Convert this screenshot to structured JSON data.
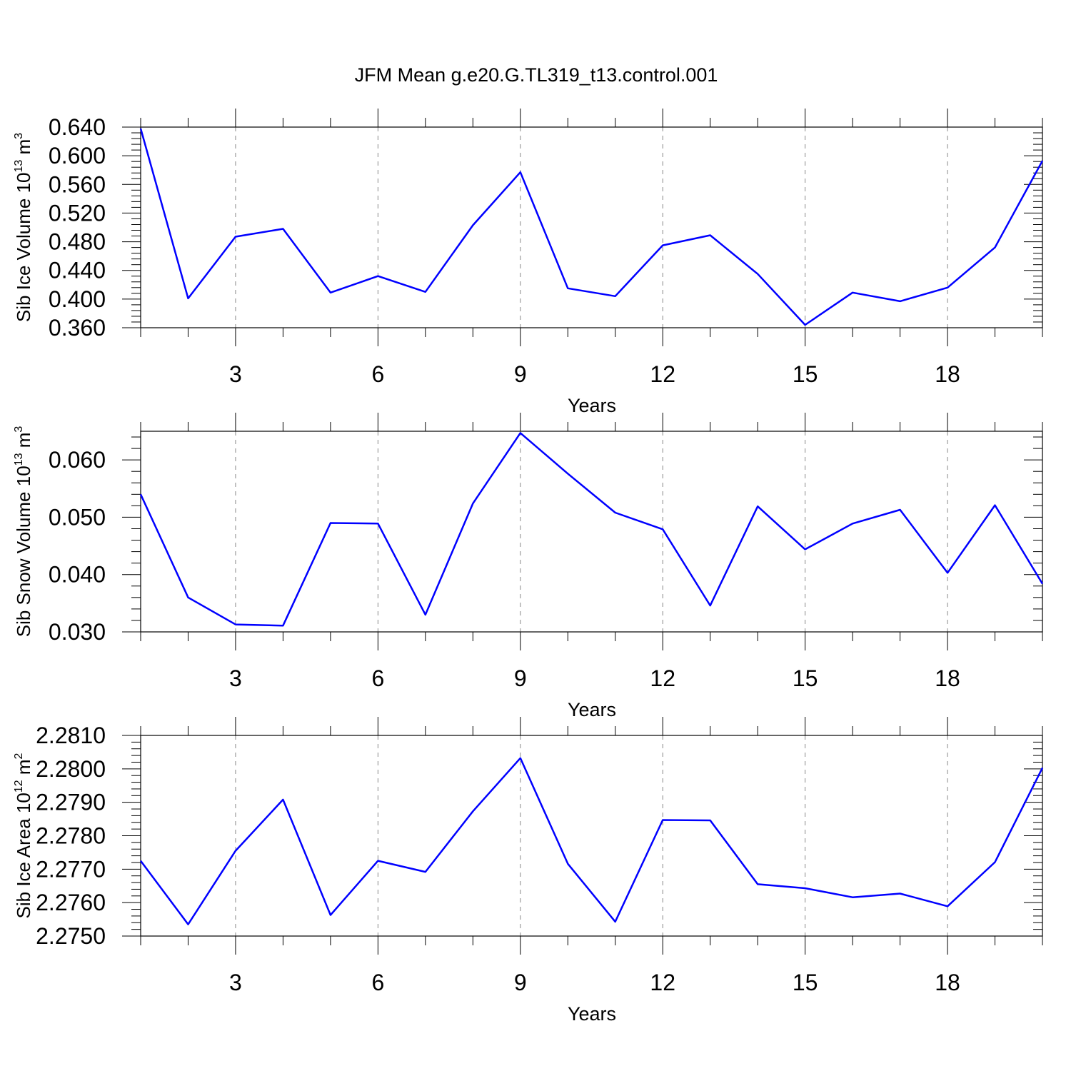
{
  "title": "JFM Mean g.e20.G.TL319_t13.control.001",
  "chart_data": [
    {
      "type": "line",
      "ylabel": {
        "main": "Sib Ice Volume 10",
        "exp": "13",
        "unit": " m",
        "unit_exp": "3"
      },
      "xlabel": "Years",
      "x": [
        1,
        2,
        3,
        4,
        5,
        6,
        7,
        8,
        9,
        10,
        11,
        12,
        13,
        14,
        15,
        16,
        17,
        18,
        19,
        20
      ],
      "values": [
        0.638,
        0.401,
        0.487,
        0.498,
        0.409,
        0.432,
        0.41,
        0.503,
        0.577,
        0.415,
        0.404,
        0.475,
        0.489,
        0.435,
        0.364,
        0.409,
        0.397,
        0.416,
        0.472,
        0.593
      ],
      "xlim": [
        1,
        20
      ],
      "ylim": [
        0.36,
        0.64
      ],
      "xticks": [
        3,
        6,
        9,
        12,
        15,
        18
      ],
      "yticks": [
        0.36,
        0.4,
        0.44,
        0.48,
        0.52,
        0.56,
        0.6,
        0.64
      ],
      "ytick_labels": [
        "0.360",
        "0.400",
        "0.440",
        "0.480",
        "0.520",
        "0.560",
        "0.600",
        "0.640"
      ],
      "grid": "vertical-dashed",
      "color": "#0000ff"
    },
    {
      "type": "line",
      "ylabel": {
        "main": "Sib Snow Volume 10",
        "exp": "13",
        "unit": " m",
        "unit_exp": "3"
      },
      "xlabel": "Years",
      "x": [
        1,
        2,
        3,
        4,
        5,
        6,
        7,
        8,
        9,
        10,
        11,
        12,
        13,
        14,
        15,
        16,
        17,
        18,
        19,
        20
      ],
      "values": [
        0.054,
        0.036,
        0.0313,
        0.0311,
        0.049,
        0.0489,
        0.033,
        0.0524,
        0.0647,
        0.0576,
        0.0508,
        0.0479,
        0.0346,
        0.0519,
        0.0444,
        0.0489,
        0.0513,
        0.0403,
        0.0521,
        0.0384
      ],
      "xlim": [
        1,
        20
      ],
      "ylim": [
        0.03,
        0.065
      ],
      "xticks": [
        3,
        6,
        9,
        12,
        15,
        18
      ],
      "yticks": [
        0.03,
        0.04,
        0.05,
        0.06
      ],
      "ytick_labels": [
        "0.030",
        "0.040",
        "0.050",
        "0.060"
      ],
      "grid": "vertical-dashed",
      "color": "#0000ff"
    },
    {
      "type": "line",
      "ylabel": {
        "main": "Sib Ice Area 10",
        "exp": "12",
        "unit": " m",
        "unit_exp": "2"
      },
      "xlabel": "Years",
      "x": [
        1,
        2,
        3,
        4,
        5,
        6,
        7,
        8,
        9,
        10,
        11,
        12,
        13,
        14,
        15,
        16,
        17,
        18,
        19,
        20
      ],
      "values": [
        2.27725,
        2.27535,
        2.27755,
        2.27908,
        2.27563,
        2.27725,
        2.27692,
        2.27873,
        2.28032,
        2.27716,
        2.27543,
        2.27847,
        2.27846,
        2.27655,
        2.27643,
        2.27616,
        2.27627,
        2.27589,
        2.27721,
        2.28003
      ],
      "xlim": [
        1,
        20
      ],
      "ylim": [
        2.275,
        2.281
      ],
      "xticks": [
        3,
        6,
        9,
        12,
        15,
        18
      ],
      "yticks": [
        2.275,
        2.276,
        2.277,
        2.278,
        2.279,
        2.28,
        2.281
      ],
      "ytick_labels": [
        "2.2750",
        "2.2760",
        "2.2770",
        "2.2780",
        "2.2790",
        "2.2800",
        "2.2810"
      ],
      "grid": "vertical-dashed",
      "color": "#0000ff"
    }
  ]
}
